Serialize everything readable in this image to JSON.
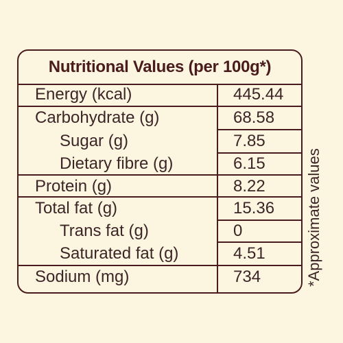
{
  "table": {
    "title": "Nutritional Values (per 100g*)",
    "rows": [
      {
        "label": "Energy (kcal)",
        "value": "445.44"
      },
      {
        "label": "Carbohydrate (g)",
        "value": "68.58"
      },
      {
        "label": "Sugar (g)",
        "value": "7.85"
      },
      {
        "label": "Dietary fibre (g)",
        "value": "6.15"
      },
      {
        "label": "Protein (g)",
        "value": "8.22"
      },
      {
        "label": "Total fat (g)",
        "value": "15.36"
      },
      {
        "label": "Trans fat (g)",
        "value": "0"
      },
      {
        "label": "Saturated fat (g)",
        "value": "4.51"
      },
      {
        "label": "Sodium (mg)",
        "value": "734"
      }
    ]
  },
  "footnote": "*Approximate values",
  "colors": {
    "background": "#fcf6e1",
    "border": "#4a1b1d",
    "text": "#3c2526"
  }
}
